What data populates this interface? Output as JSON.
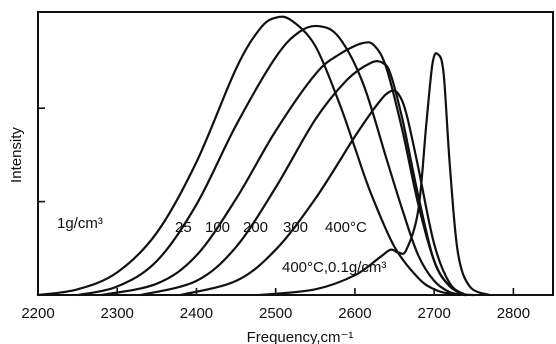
{
  "chart_data": {
    "type": "line",
    "xlabel": "Frequency,cm⁻¹",
    "ylabel": "Intensity",
    "xlim": [
      2200,
      2850
    ],
    "ylim": [
      0,
      1.0
    ],
    "x_ticks": [
      2200,
      2300,
      2400,
      2500,
      2600,
      2700,
      2800
    ],
    "y_ticks": [
      0.33,
      0.66
    ],
    "grid": false,
    "annotations": {
      "density_main": "1g/cm³",
      "temps_1gcm": [
        "25",
        "100",
        "200",
        "300",
        "400°C"
      ],
      "low_density": "400°C,0.1g/cm³"
    },
    "series": [
      {
        "label": "25",
        "x": [
          2200,
          2250,
          2300,
          2350,
          2400,
          2450,
          2480,
          2500,
          2520,
          2550,
          2580,
          2600,
          2620,
          2650,
          2680,
          2700,
          2720,
          2750
        ],
        "y": [
          0.0,
          0.02,
          0.08,
          0.22,
          0.47,
          0.8,
          0.94,
          0.98,
          0.97,
          0.88,
          0.68,
          0.52,
          0.36,
          0.17,
          0.06,
          0.02,
          0.005,
          0.0
        ]
      },
      {
        "label": "100",
        "x": [
          2250,
          2300,
          2350,
          2400,
          2450,
          2500,
          2530,
          2555,
          2580,
          2610,
          2640,
          2660,
          2680,
          2700,
          2720,
          2740
        ],
        "y": [
          0.0,
          0.03,
          0.12,
          0.32,
          0.6,
          0.84,
          0.93,
          0.95,
          0.91,
          0.75,
          0.48,
          0.3,
          0.14,
          0.05,
          0.01,
          0.0
        ]
      },
      {
        "label": "200",
        "x": [
          2280,
          2350,
          2400,
          2450,
          2500,
          2550,
          2580,
          2610,
          2625,
          2640,
          2660,
          2680,
          2700,
          2720,
          2740
        ],
        "y": [
          0.0,
          0.04,
          0.14,
          0.34,
          0.58,
          0.78,
          0.85,
          0.89,
          0.88,
          0.8,
          0.58,
          0.32,
          0.12,
          0.03,
          0.0
        ]
      },
      {
        "label": "300",
        "x": [
          2330,
          2400,
          2450,
          2500,
          2550,
          2590,
          2620,
          2635,
          2645,
          2660,
          2680,
          2700,
          2720,
          2740
        ],
        "y": [
          0.0,
          0.05,
          0.17,
          0.38,
          0.62,
          0.76,
          0.82,
          0.82,
          0.78,
          0.62,
          0.35,
          0.12,
          0.03,
          0.0
        ]
      },
      {
        "label": "400°C",
        "x": [
          2380,
          2450,
          2500,
          2550,
          2600,
          2630,
          2645,
          2655,
          2665,
          2680,
          2700,
          2720,
          2740
        ],
        "y": [
          0.0,
          0.05,
          0.16,
          0.34,
          0.56,
          0.68,
          0.72,
          0.71,
          0.64,
          0.45,
          0.18,
          0.04,
          0.0
        ]
      },
      {
        "label": "400°C,0.1g/cm³",
        "x": [
          2480,
          2550,
          2600,
          2630,
          2645,
          2655,
          2665,
          2680,
          2690,
          2698,
          2705,
          2712,
          2720,
          2730,
          2745,
          2770
        ],
        "y": [
          0.0,
          0.02,
          0.07,
          0.13,
          0.16,
          0.15,
          0.16,
          0.3,
          0.6,
          0.82,
          0.85,
          0.78,
          0.45,
          0.15,
          0.03,
          0.0
        ]
      }
    ]
  }
}
